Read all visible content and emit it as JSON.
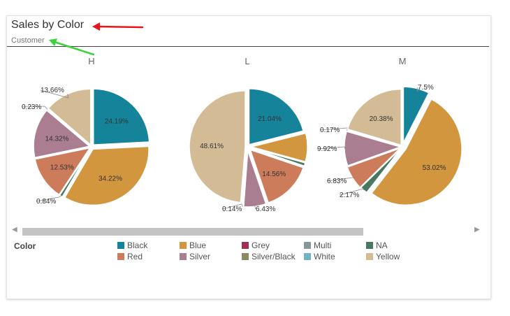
{
  "header": {
    "title": "Sales by Color",
    "subtitle": "Customer"
  },
  "legend": {
    "title": "Color",
    "items": [
      {
        "name": "Black",
        "color": "#158399"
      },
      {
        "name": "Blue",
        "color": "#d2963e"
      },
      {
        "name": "Grey",
        "color": "#a0304f"
      },
      {
        "name": "Multi",
        "color": "#88959b"
      },
      {
        "name": "NA",
        "color": "#4a7760"
      },
      {
        "name": "Red",
        "color": "#cd7c5b"
      },
      {
        "name": "Silver",
        "color": "#aa7d90"
      },
      {
        "name": "Silver/Black",
        "color": "#8c8a63"
      },
      {
        "name": "White",
        "color": "#6fb5c4"
      },
      {
        "name": "Yellow",
        "color": "#d3bb95"
      }
    ]
  },
  "chart_data": {
    "type": "pie",
    "title": "Sales by Color",
    "subtitle": "Customer",
    "series_field": "Customer",
    "legend_title": "Color",
    "legend_position": "bottom",
    "charts": [
      {
        "name": "H",
        "slices": [
          {
            "label": "Black",
            "value": 24.19,
            "text": "24.19%"
          },
          {
            "label": "Blue",
            "value": 34.22,
            "text": "34.22%"
          },
          {
            "label": "NA",
            "value": 0.84,
            "text": "0.84%"
          },
          {
            "label": "Red",
            "value": 12.53,
            "text": "12.53%"
          },
          {
            "label": "Silver",
            "value": 14.32,
            "text": "14.32%"
          },
          {
            "label": "Silver/Black",
            "value": 0.23,
            "text": "0.23%"
          },
          {
            "label": "Yellow",
            "value": 13.66,
            "text": "13.66%"
          }
        ]
      },
      {
        "name": "L",
        "slices": [
          {
            "label": "Black",
            "value": 21.04,
            "text": "21.04%"
          },
          {
            "label": "Blue",
            "value": 8.2,
            "text": ""
          },
          {
            "label": "NA",
            "value": 0.9,
            "text": ""
          },
          {
            "label": "Red",
            "value": 14.56,
            "text": "14.56%"
          },
          {
            "label": "Silver",
            "value": 6.43,
            "text": "6.43%"
          },
          {
            "label": "Silver/Black",
            "value": 0.14,
            "text": "0.14%"
          },
          {
            "label": "Yellow",
            "value": 48.61,
            "text": "48.61%"
          }
        ]
      },
      {
        "name": "M",
        "slices": [
          {
            "label": "Black",
            "value": 7.5,
            "text": "7.5%"
          },
          {
            "label": "Blue",
            "value": 53.02,
            "text": "53.02%"
          },
          {
            "label": "NA",
            "value": 2.17,
            "text": "2.17%"
          },
          {
            "label": "Red",
            "value": 6.83,
            "text": "6.83%"
          },
          {
            "label": "Silver",
            "value": 9.92,
            "text": "9.92%"
          },
          {
            "label": "Silver/Black",
            "value": 0.17,
            "text": "0.17%"
          },
          {
            "label": "Yellow",
            "value": 20.38,
            "text": "20.38%"
          }
        ]
      }
    ]
  }
}
